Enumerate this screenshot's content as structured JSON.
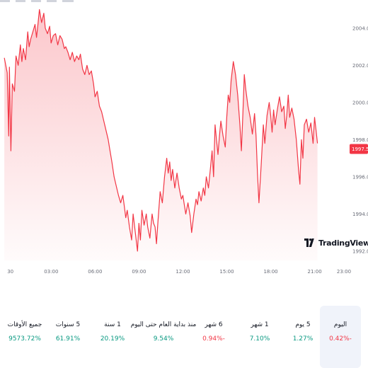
{
  "chart_data": {
    "type": "area",
    "x_ticks": [
      "30",
      "03:00",
      "06:00",
      "09:00",
      "12:00",
      "15:00",
      "18:00",
      "21:00",
      "23:00"
    ],
    "y_ticks": [
      2004.0,
      2002.0,
      2000.0,
      1998.0,
      1996.0,
      1994.0,
      1992.0
    ],
    "y_tick_labels": [
      "2004.00",
      "2002.00",
      "2000.00",
      "1998.00",
      "1996.00",
      "1994.00",
      "1992.00"
    ],
    "ylim": [
      1991.5,
      2004.6
    ],
    "xlim_hours": [
      -0.3,
      23.2
    ],
    "series": [
      {
        "x_hours": [
          -0.2,
          0.0,
          0.1,
          0.15,
          0.25,
          0.35,
          0.5,
          0.6,
          0.75,
          0.9,
          1.0,
          1.1,
          1.25,
          1.4,
          1.5,
          1.6,
          1.75,
          1.9,
          2.0,
          2.1,
          2.2,
          2.35,
          2.5,
          2.6,
          2.75,
          2.9,
          3.0,
          3.15,
          3.3,
          3.45,
          3.6,
          3.75,
          3.9,
          4.0,
          4.15,
          4.3,
          4.45,
          4.6,
          4.75,
          4.9,
          5.0,
          5.15,
          5.3,
          5.45,
          5.6,
          5.75,
          5.9,
          6.0,
          6.15,
          6.3,
          6.45,
          6.6,
          6.75,
          6.9,
          7.0,
          7.15,
          7.3,
          7.45,
          7.6,
          7.75,
          7.9,
          8.0,
          8.1,
          8.2,
          8.35,
          8.5,
          8.6,
          8.75,
          8.9,
          9.0,
          9.1,
          9.2,
          9.35,
          9.5,
          9.6,
          9.75,
          9.9,
          10.0,
          10.1,
          10.2,
          10.3,
          10.45,
          10.6,
          10.75,
          10.9,
          11.0,
          11.1,
          11.2,
          11.3,
          11.45,
          11.6,
          11.75,
          11.9,
          12.0,
          12.1,
          12.2,
          12.35,
          12.5,
          12.6,
          12.75,
          12.9,
          13.0,
          13.1,
          13.25,
          13.4,
          13.5,
          13.6,
          13.75,
          13.9,
          14.0,
          14.1,
          14.2,
          14.3,
          14.4,
          14.5,
          14.6,
          14.75,
          14.9,
          15.0,
          15.1,
          15.2,
          15.3,
          15.45,
          15.6,
          15.75,
          15.9,
          16.0,
          16.1,
          16.2,
          16.3,
          16.45,
          16.6,
          16.75,
          16.9,
          17.0,
          17.1,
          17.2,
          17.35,
          17.5,
          17.6,
          17.75,
          17.9,
          18.0,
          18.1,
          18.2,
          18.3,
          18.45,
          18.6,
          18.75,
          18.9,
          19.0,
          19.1,
          19.2,
          19.3,
          19.45,
          19.6,
          19.75,
          19.9,
          20.0,
          20.1,
          20.2,
          20.3,
          20.45,
          20.6,
          20.75,
          20.9,
          21.0,
          21.1,
          21.2
        ],
        "y": [
          2002.4,
          2001.6,
          1998.2,
          2001.9,
          1997.4,
          2001.0,
          2000.6,
          2002.5,
          2002.0,
          2003.1,
          2002.2,
          2002.9,
          2002.3,
          2003.8,
          2003.0,
          2003.4,
          2003.8,
          2004.2,
          2003.5,
          2004.2,
          2005.0,
          2004.3,
          2004.8,
          2004.0,
          2003.7,
          2004.1,
          2003.2,
          2003.6,
          2003.7,
          2003.1,
          2003.6,
          2003.4,
          2002.9,
          2003.0,
          2002.7,
          2002.3,
          2002.7,
          2002.2,
          2002.5,
          2002.3,
          2002.6,
          2001.8,
          2001.5,
          2002.0,
          2001.5,
          2001.7,
          2001.0,
          2000.3,
          2000.6,
          1999.8,
          1999.5,
          1999.0,
          1998.5,
          1998.0,
          1997.5,
          1996.8,
          1996.0,
          1995.5,
          1995.0,
          1994.6,
          1995.0,
          1994.4,
          1993.8,
          1994.2,
          1993.3,
          1992.6,
          1994.0,
          1993.0,
          1992.0,
          1993.5,
          1992.6,
          1994.2,
          1993.4,
          1994.0,
          1993.3,
          1992.7,
          1994.0,
          1993.5,
          1993.3,
          1992.4,
          1993.6,
          1995.2,
          1994.6,
          1996.0,
          1997.0,
          1996.2,
          1996.8,
          1995.8,
          1996.4,
          1995.4,
          1996.2,
          1995.4,
          1994.8,
          1995.0,
          1994.5,
          1994.0,
          1994.6,
          1993.9,
          1993.0,
          1994.0,
          1994.8,
          1994.5,
          1995.2,
          1994.7,
          1995.4,
          1995.0,
          1996.0,
          1995.4,
          1996.6,
          1997.4,
          1996.0,
          1998.8,
          1998.0,
          1997.2,
          1998.2,
          1999.0,
          1998.2,
          1997.6,
          1999.2,
          2000.4,
          2000.0,
          2001.2,
          2002.2,
          2001.5,
          2000.4,
          1998.8,
          1997.4,
          1999.4,
          2001.5,
          2000.7,
          1999.8,
          1999.2,
          1998.3,
          1999.4,
          1998.2,
          1996.2,
          1994.6,
          1996.6,
          1998.8,
          1997.8,
          1999.3,
          2000.0,
          1999.3,
          1998.4,
          1999.6,
          1998.8,
          1999.6,
          2000.3,
          1999.5,
          1999.8,
          1998.6,
          1999.3,
          2000.4,
          1999.2,
          1999.7,
          1999.1,
          1998.0,
          1996.4,
          1995.6,
          1998.0,
          1997.0,
          1998.8,
          1999.1,
          1998.4,
          1998.9,
          1997.8,
          1999.2,
          1998.5,
          1997.8
        ],
        "line_color": "#f23645",
        "fill_color": "#f23645"
      }
    ],
    "last_price": "1997.50"
  },
  "brand": {
    "logo_text": "TradingView"
  },
  "performance": [
    {
      "label": "اليوم",
      "value": "0.42%-",
      "trend": "neg",
      "active": true
    },
    {
      "label": "5 يوم",
      "value": "1.27%",
      "trend": "pos",
      "active": false
    },
    {
      "label": "1 شهر",
      "value": "7.10%",
      "trend": "pos",
      "active": false
    },
    {
      "label": "6 شهر",
      "value": "0.94%-",
      "trend": "neg",
      "active": false
    },
    {
      "label": "منذ بداية العام حتى اليوم",
      "value": "9.54%",
      "trend": "pos",
      "active": false
    },
    {
      "label": "1 سنة",
      "value": "20.19%",
      "trend": "pos",
      "active": false
    },
    {
      "label": "5 سنوات",
      "value": "61.91%",
      "trend": "pos",
      "active": false
    },
    {
      "label": "جميع الأوقات",
      "value": "9573.72%",
      "trend": "pos",
      "active": false
    }
  ]
}
